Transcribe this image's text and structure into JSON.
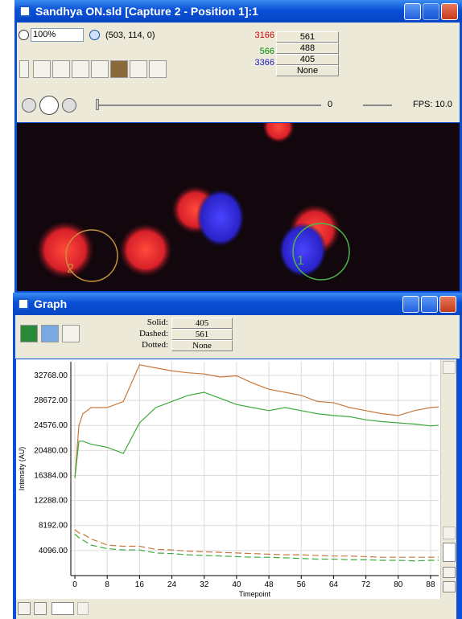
{
  "image_window": {
    "title": "Sandhya ON.sld [Capture 2 - Position 1]:1",
    "zoom": "100%",
    "coordinates": "(503, 114, 0)",
    "channels": [
      {
        "value": 3166,
        "color": "#d40000",
        "button": "561"
      },
      {
        "value": 566,
        "color": "#008a00",
        "button": "488"
      },
      {
        "value": 3366,
        "color": "#1a1acc",
        "button": "405"
      },
      {
        "button": "None"
      }
    ],
    "frame": 0,
    "fps": "FPS: 10.0",
    "roi_labels": [
      "1",
      "2"
    ]
  },
  "graph_window": {
    "title": "Graph",
    "solid_label": "Solid:",
    "solid": "405",
    "dashed_label": "Dashed:",
    "dashed": "561",
    "dotted_label": "Dotted:",
    "dotted": "None",
    "chart_data": {
      "type": "line",
      "x_label": "Timepoint",
      "y_label": "Intensity (AU)",
      "grid": true,
      "x": [
        0,
        1,
        2,
        4,
        8,
        12,
        16,
        20,
        24,
        28,
        32,
        36,
        40,
        44,
        48,
        52,
        56,
        60,
        64,
        68,
        72,
        76,
        80,
        84,
        88,
        90
      ],
      "xlim": [
        -1,
        90
      ],
      "xticks": [
        0,
        8,
        16,
        24,
        32,
        40,
        48,
        56,
        64,
        72,
        80,
        88
      ],
      "ylim": [
        0,
        35000
      ],
      "yticks": [
        {
          "value": 4096,
          "label": "4096.00"
        },
        {
          "value": 8192,
          "label": "8192.00"
        },
        {
          "value": 12288,
          "label": "12288.00"
        },
        {
          "value": 16384,
          "label": "16384.00"
        },
        {
          "value": 20480,
          "label": "20480.00"
        },
        {
          "value": 24576,
          "label": "24576.00"
        },
        {
          "value": 28672,
          "label": "28672.00"
        },
        {
          "value": 32768,
          "label": "32768.00"
        }
      ],
      "series": [
        {
          "color": "#c8783c",
          "line_style": "solid",
          "values": [
            16000,
            24576,
            26500,
            27500,
            27500,
            28500,
            34500,
            34000,
            33500,
            33200,
            33000,
            32500,
            32700,
            31500,
            30500,
            30000,
            29500,
            28500,
            28300,
            27500,
            27000,
            26500,
            26200,
            27000,
            27500,
            27600
          ]
        },
        {
          "color": "#3caa3c",
          "line_style": "solid",
          "values": [
            16000,
            22000,
            22000,
            21500,
            21000,
            20000,
            25000,
            27500,
            28500,
            29500,
            30000,
            29000,
            28000,
            27500,
            27000,
            27500,
            27000,
            26500,
            26200,
            26000,
            25500,
            25200,
            25000,
            24800,
            24500,
            24600
          ]
        },
        {
          "color": "#c8783c",
          "line_style": "dashed",
          "values": [
            7500,
            7000,
            6800,
            6000,
            5000,
            4800,
            4800,
            4300,
            4200,
            4000,
            3900,
            3800,
            3700,
            3600,
            3500,
            3400,
            3400,
            3300,
            3200,
            3200,
            3100,
            3000,
            3000,
            3000,
            3000,
            3000
          ]
        },
        {
          "color": "#3caa3c",
          "line_style": "dashed",
          "values": [
            6800,
            6200,
            5800,
            5000,
            4400,
            4200,
            4200,
            3700,
            3600,
            3400,
            3300,
            3200,
            3100,
            3000,
            3000,
            2900,
            2800,
            2700,
            2700,
            2600,
            2600,
            2500,
            2500,
            2400,
            2500,
            2500
          ]
        }
      ]
    }
  }
}
